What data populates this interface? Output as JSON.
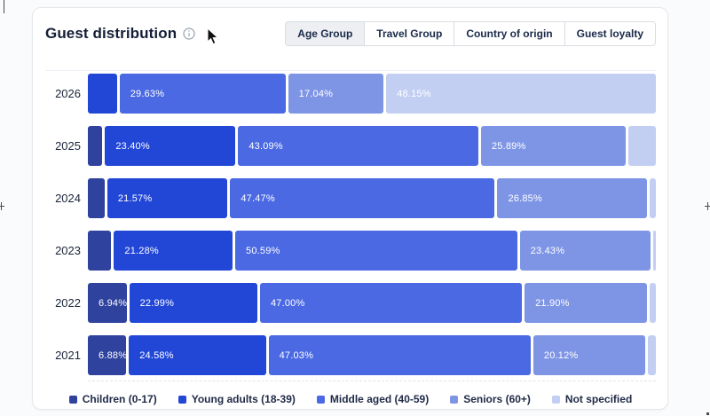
{
  "header": {
    "title": "Guest distribution",
    "tabs": [
      {
        "label": "Age Group",
        "selected": true
      },
      {
        "label": "Travel Group",
        "selected": false
      },
      {
        "label": "Country of origin",
        "selected": false
      },
      {
        "label": "Guest loyalty",
        "selected": false
      }
    ]
  },
  "chart_data": {
    "type": "bar",
    "orientation": "horizontal",
    "stacked": true,
    "title": "Guest distribution",
    "value_unit": "%",
    "xlim": [
      0,
      100
    ],
    "legend_position": "bottom",
    "categories": [
      "2026",
      "2025",
      "2024",
      "2023",
      "2022",
      "2021"
    ],
    "series": [
      {
        "name": "Children (0-17)",
        "color": "#2e429e",
        "values": [
          0,
          2.6,
          3.0,
          4.2,
          6.94,
          6.88
        ],
        "labels": [
          "",
          "",
          "",
          "",
          "6.94%",
          "6.88%"
        ]
      },
      {
        "name": "Young adults (18-39)",
        "color": "#2247d7",
        "values": [
          5.18,
          23.4,
          21.57,
          21.28,
          22.99,
          24.58
        ],
        "labels": [
          "",
          "23.40%",
          "21.57%",
          "21.28%",
          "22.99%",
          "24.58%"
        ]
      },
      {
        "name": "Middle aged (40-59)",
        "color": "#4a69e3",
        "values": [
          29.63,
          43.09,
          47.47,
          50.59,
          47.0,
          47.03
        ],
        "labels": [
          "29.63%",
          "43.09%",
          "47.47%",
          "50.59%",
          "47.00%",
          "47.03%"
        ]
      },
      {
        "name": "Seniors (60+)",
        "color": "#7e95e6",
        "values": [
          17.04,
          25.89,
          26.85,
          23.43,
          21.9,
          20.12
        ],
        "labels": [
          "17.04%",
          "25.89%",
          "26.85%",
          "23.43%",
          "21.90%",
          "20.12%"
        ]
      },
      {
        "name": "Not specified",
        "color": "#c2cff2",
        "values": [
          48.15,
          5.0,
          1.1,
          0.5,
          1.17,
          1.39
        ],
        "labels": [
          "48.15%",
          "",
          "",
          "",
          "",
          ""
        ]
      }
    ],
    "note": "Unlabeled small segment values estimated from bar pixel widths"
  }
}
